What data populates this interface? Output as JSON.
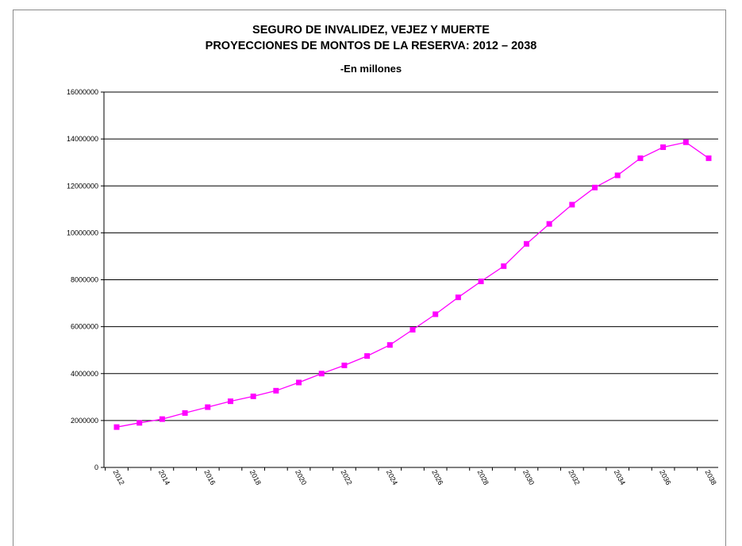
{
  "chart_data": {
    "type": "line",
    "title": "SEGURO DE INVALIDEZ, VEJEZ Y MUERTE",
    "subtitle": "PROYECCIONES DE MONTOS DE LA  RESERVA:  2012 – 2038",
    "subtitle2": "-En millones",
    "xlabel": "",
    "ylabel": "",
    "x": [
      2012,
      2013,
      2014,
      2015,
      2016,
      2017,
      2018,
      2019,
      2020,
      2021,
      2022,
      2023,
      2024,
      2025,
      2026,
      2027,
      2028,
      2029,
      2030,
      2031,
      2032,
      2033,
      2034,
      2035,
      2036,
      2037,
      2038
    ],
    "x_tick_labels": [
      "2012",
      "2014",
      "2016",
      "2018",
      "2020",
      "2022",
      "2024",
      "2026",
      "2028",
      "2030",
      "2032",
      "2034",
      "2036",
      "2038"
    ],
    "series": [
      {
        "values": [
          1720000,
          1900000,
          2060000,
          2320000,
          2570000,
          2820000,
          3030000,
          3270000,
          3620000,
          4000000,
          4350000,
          4750000,
          5220000,
          5870000,
          6530000,
          7250000,
          7930000,
          8580000,
          9530000,
          10380000,
          11200000,
          11930000,
          12450000,
          13180000,
          13650000,
          13860000,
          13180000
        ],
        "color": "#ff00ff"
      }
    ],
    "ylim": [
      0,
      16000000
    ],
    "y_ticks": [
      0,
      2000000,
      4000000,
      6000000,
      8000000,
      10000000,
      12000000,
      14000000,
      16000000
    ],
    "y_tick_labels": [
      "0",
      "2000000",
      "4000000",
      "6000000",
      "8000000",
      "10000000",
      "12000000",
      "14000000",
      "16000000"
    ],
    "grid": true,
    "legend": "none"
  }
}
